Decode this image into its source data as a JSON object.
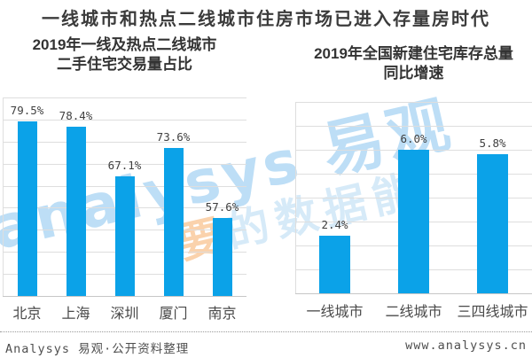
{
  "title": "一线城市和热点二线城市住房市场已进入存量房时代",
  "watermark": {
    "line1_latin": "analysys ",
    "line1_cjk": "易观",
    "line2_orange": "要",
    "line2_rest": "的数据能"
  },
  "footer": {
    "source": "Analysys 易观·公开资料整理",
    "site": "www.analysys.cn"
  },
  "colors": {
    "bar": "#0ba2e8",
    "grid": "#dedede",
    "axis": "#c7c7c7",
    "watermark_blue": "rgba(135,195,238,0.55)",
    "watermark_blue_light": "rgba(165,208,240,0.45)",
    "watermark_orange": "rgba(243,156,70,0.45)"
  },
  "chart_data": [
    {
      "type": "bar",
      "title_line1": "2019年一线及热点二线城市",
      "title_line2": "二手住宅交易量占比",
      "categories": [
        "北京",
        "上海",
        "深圳",
        "厦门",
        "南京"
      ],
      "values": [
        79.5,
        78.4,
        67.1,
        73.6,
        57.6
      ],
      "labels": [
        "79.5%",
        "78.4%",
        "67.1%",
        "73.6%",
        "57.6%"
      ],
      "unit": "%",
      "ylim": [
        40,
        85
      ],
      "grid_step": 5,
      "grid": true,
      "y_axis_labels_visible": false,
      "legend": false
    },
    {
      "type": "bar",
      "title_line1": "2019年全国新建住宅库存总量",
      "title_line2": "同比增速",
      "categories": [
        "一线城市",
        "二线城市",
        "三四线城市"
      ],
      "values": [
        2.4,
        6.0,
        5.8
      ],
      "labels": [
        "2.4%",
        "6.0%",
        "5.8%"
      ],
      "unit": "%",
      "ylim": [
        0,
        8
      ],
      "grid_step": 1,
      "grid": true,
      "y_axis_labels_visible": false,
      "legend": false
    }
  ]
}
